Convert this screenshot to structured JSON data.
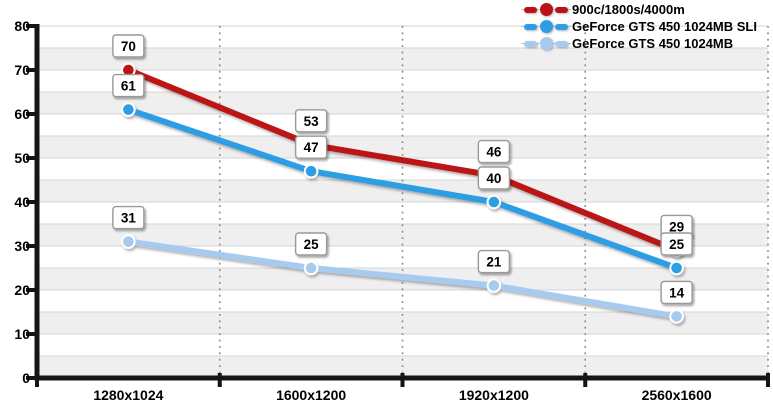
{
  "chart_data": {
    "type": "line",
    "title": "",
    "xlabel": "",
    "ylabel": "",
    "categories": [
      "1280x1024",
      "1600x1200",
      "1920x1200",
      "2560x1600"
    ],
    "series": [
      {
        "name": "900c/1800s/4000m",
        "color": "#bb1217",
        "values": [
          70,
          53,
          46,
          29
        ]
      },
      {
        "name": "GeForce GTS 450 1024MB SLI",
        "color": "#2e9ee4",
        "values": [
          61,
          47,
          40,
          25
        ]
      },
      {
        "name": "GeForce GTS 450 1024MB",
        "color": "#a7cbee",
        "values": [
          31,
          25,
          21,
          14
        ]
      }
    ],
    "ylim": [
      0,
      80
    ],
    "y_tick_labels": [
      "80",
      "70",
      "60",
      "50",
      "40",
      "30",
      "20",
      "10",
      "0"
    ],
    "y_tick_step": 10,
    "grid_step": 5,
    "grid": true,
    "data_labels": true,
    "legend_position": "top-right",
    "style": {
      "background": "#ffffff",
      "band_fill": "#efefef",
      "grid_line": "#d4d4d4",
      "axis_color": "#151515",
      "dotted_separator": "#8a8a8a",
      "label_box_fill": "#ffffff",
      "label_box_border": "#999999",
      "label_text": "#000000",
      "point_ring": "#ffffff"
    }
  }
}
